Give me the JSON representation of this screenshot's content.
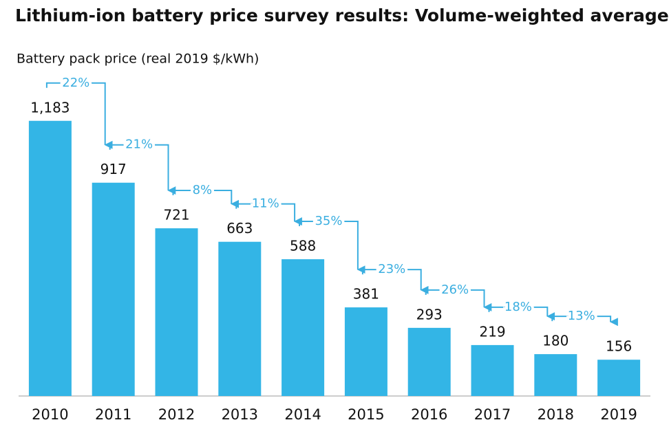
{
  "chart_data": {
    "type": "bar",
    "title": "Lithium-ion battery price survey results: Volume-weighted average",
    "subtitle": "Battery pack price (real 2019 $/kWh)",
    "categories": [
      "2010",
      "2011",
      "2012",
      "2013",
      "2014",
      "2015",
      "2016",
      "2017",
      "2018",
      "2019"
    ],
    "values": [
      1183,
      917,
      721,
      663,
      588,
      381,
      293,
      219,
      180,
      156
    ],
    "value_labels": [
      "1,183",
      "917",
      "721",
      "663",
      "588",
      "381",
      "293",
      "219",
      "180",
      "156"
    ],
    "annotations": [
      "22%",
      "21%",
      "8%",
      "11%",
      "35%",
      "23%",
      "26%",
      "18%",
      "13%"
    ],
    "color": "#33b5e6",
    "annotation_color": "#3aaee0",
    "ylim": [
      0,
      1200
    ]
  }
}
